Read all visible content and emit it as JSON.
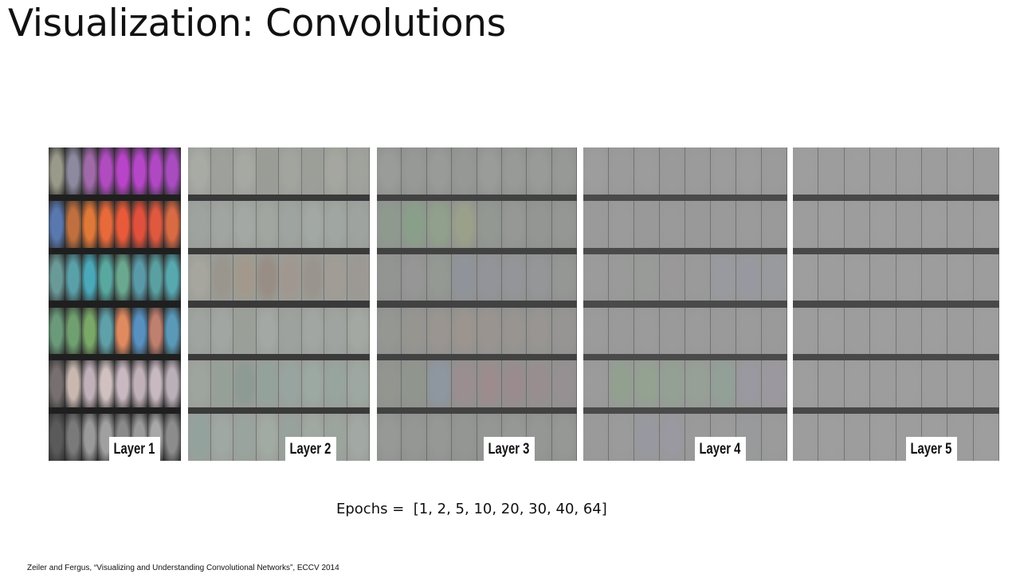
{
  "slide": {
    "title": "Visualization: Convolutions",
    "epochs_text": "Epochs =  [1, 2, 5, 10, 20, 30, 40, 64]",
    "citation": "Zeiler and Fergus, “Visualizing and Understanding Convolutional Networks”, ECCV 2014"
  },
  "figure": {
    "layers": [
      {
        "label": "Layer 1",
        "background": "#2e2e2e",
        "separator": "#1f1f1f",
        "row_colors": [
          [
            "#9a9a8a",
            "#8d8aa0",
            "#a06aa8",
            "#b04cc0",
            "#b844c8",
            "#b646c8",
            "#b048c4",
            "#a84cc0"
          ],
          [
            "#5a78b0",
            "#c07040",
            "#e07838",
            "#e86a3a",
            "#e85a3a",
            "#e0503c",
            "#e05840",
            "#d86a44"
          ],
          [
            "#6a9a98",
            "#5aa0a8",
            "#4aa8b8",
            "#58a8a0",
            "#6aa890",
            "#5a9aa8",
            "#5aa0a0",
            "#58a8b0"
          ],
          [
            "#6a9a7a",
            "#70a070",
            "#7aa868",
            "#60a0a8",
            "#e08a60",
            "#5890c0",
            "#c08070",
            "#5a9ab8"
          ],
          [
            "#787070",
            "#c8b8b0",
            "#c0b0b8",
            "#d0c0c0",
            "#c8b8c0",
            "#c0b0b8",
            "#c8b8c0",
            "#bcb0b8"
          ],
          [
            "#5a5a5a",
            "#7a7a7a",
            "#9a9a9a",
            "#a0a0a0",
            "#8a8a8a",
            "#9a9a9a",
            "#a8a8a8",
            "#8c8c8c"
          ]
        ]
      },
      {
        "label": "Layer 2",
        "background": "#9a9d98",
        "separator": "#3a3a3a",
        "row_colors": [
          [
            "#a8aaa4",
            "#9ea09a",
            "#a6a8a2",
            "#9a9c96",
            "#a2a49e",
            "#9c9e98",
            "#a4a69f",
            "#a0a29c"
          ],
          [
            "#9ea3a0",
            "#a0a5a2",
            "#a3a8a4",
            "#a0a6a0",
            "#9ea4a0",
            "#a2a8a4",
            "#a0a6a2",
            "#9ea3a0"
          ],
          [
            "#a6a59e",
            "#9a968e",
            "#a2998c",
            "#988e86",
            "#a09890",
            "#9a948e",
            "#a19c95",
            "#9c9893"
          ],
          [
            "#9fa4a0",
            "#a2a6a2",
            "#9aa098",
            "#a4a8a4",
            "#9ea29e",
            "#a2a6a2",
            "#a0a4a0",
            "#a4a8a2"
          ],
          [
            "#9ea59e",
            "#95a098",
            "#8e9a94",
            "#94a29c",
            "#98a4a0",
            "#9ca8a2",
            "#98a49e",
            "#9ea8a2"
          ],
          [
            "#94a29e",
            "#a0a8a4",
            "#9aa49e",
            "#a2aaa4",
            "#98a29c",
            "#a0a8a2",
            "#9ca49e",
            "#a2a8a4"
          ]
        ]
      },
      {
        "label": "Layer 3",
        "background": "#8f918f",
        "separator": "#424242",
        "row_colors": [
          [
            "#9a9c9a",
            "#979997",
            "#999b99",
            "#969896",
            "#9a9c9a",
            "#989a98",
            "#999b99",
            "#979997"
          ],
          [
            "#8f9a8f",
            "#8a9f8a",
            "#90a08a",
            "#9aa08a",
            "#939893",
            "#969896",
            "#949694",
            "#959795"
          ],
          [
            "#939593",
            "#959695",
            "#949994",
            "#90949a",
            "#92949a",
            "#939599",
            "#949698",
            "#959795"
          ],
          [
            "#959793",
            "#979590",
            "#9a9590",
            "#9c948e",
            "#9a9490",
            "#989490",
            "#989592",
            "#979593"
          ],
          [
            "#93958f",
            "#90968e",
            "#8e96a0",
            "#9a8e90",
            "#9c8c8e",
            "#9a8c8e",
            "#988e90",
            "#969092"
          ],
          [
            "#979997",
            "#959795",
            "#969896",
            "#949694",
            "#959795",
            "#969896",
            "#959795",
            "#969896"
          ]
        ]
      },
      {
        "label": "Layer 4",
        "background": "#979897",
        "separator": "#4a4a4a",
        "row_colors": [
          [
            "#9c9d9c",
            "#9a9b9a",
            "#9b9c9b",
            "#999a99",
            "#9a9b9a",
            "#9b9c9b",
            "#9c9d9c",
            "#9a9b9a"
          ],
          [
            "#999a99",
            "#9a9b9a",
            "#989998",
            "#999a99",
            "#989998",
            "#999a99",
            "#9a9b9a",
            "#999a99"
          ],
          [
            "#9a9b9a",
            "#999a99",
            "#989b98",
            "#9a9899",
            "#999a99",
            "#989aa0",
            "#9899a0",
            "#989a9e"
          ],
          [
            "#9a9b9a",
            "#999a99",
            "#9a9b9a",
            "#999a99",
            "#9a9b9a",
            "#999a99",
            "#9a9b9a",
            "#999a99"
          ],
          [
            "#9a9b9a",
            "#92a090",
            "#94a292",
            "#94a094",
            "#96a096",
            "#92a098",
            "#9a98a0",
            "#9c98a0"
          ],
          [
            "#999a99",
            "#9a9b9a",
            "#9899a0",
            "#9a98a0",
            "#999a99",
            "#9a9b9a",
            "#999a9c",
            "#9a9b9a"
          ]
        ]
      },
      {
        "label": "Layer 5",
        "background": "#9b9c9b",
        "separator": "#484848",
        "row_colors": [
          [
            "#9d9e9d",
            "#9c9d9c",
            "#9d9e9d",
            "#9c9d9c",
            "#9d9e9d",
            "#9c9d9c",
            "#9d9e9d",
            "#9c9d9c"
          ],
          [
            "#9c9d9c",
            "#9d9e9d",
            "#9c9d9c",
            "#9d9e9d",
            "#9c9d9c",
            "#9d9e9d",
            "#9c9d9c",
            "#9d9e9d"
          ],
          [
            "#9d9e9d",
            "#9c9d9c",
            "#9d9e9d",
            "#9c9d9c",
            "#9d9e9d",
            "#9c9d9c",
            "#9d9e9d",
            "#9c9d9c"
          ],
          [
            "#9c9d9c",
            "#9d9e9d",
            "#9c9d9c",
            "#9d9e9d",
            "#9c9d9c",
            "#9d9e9d",
            "#9c9d9c",
            "#9d9e9d"
          ],
          [
            "#9d9e9d",
            "#9c9d9c",
            "#9d9e9d",
            "#9c9d9c",
            "#9d9e9d",
            "#9c9d9c",
            "#9d9e9d",
            "#9c9d9c"
          ],
          [
            "#9c9d9c",
            "#9d9e9d",
            "#9c9d9c",
            "#9d9e9d",
            "#9c9d9c",
            "#9d9e9d",
            "#9c9d9c",
            "#9d9e9d"
          ]
        ]
      }
    ]
  }
}
